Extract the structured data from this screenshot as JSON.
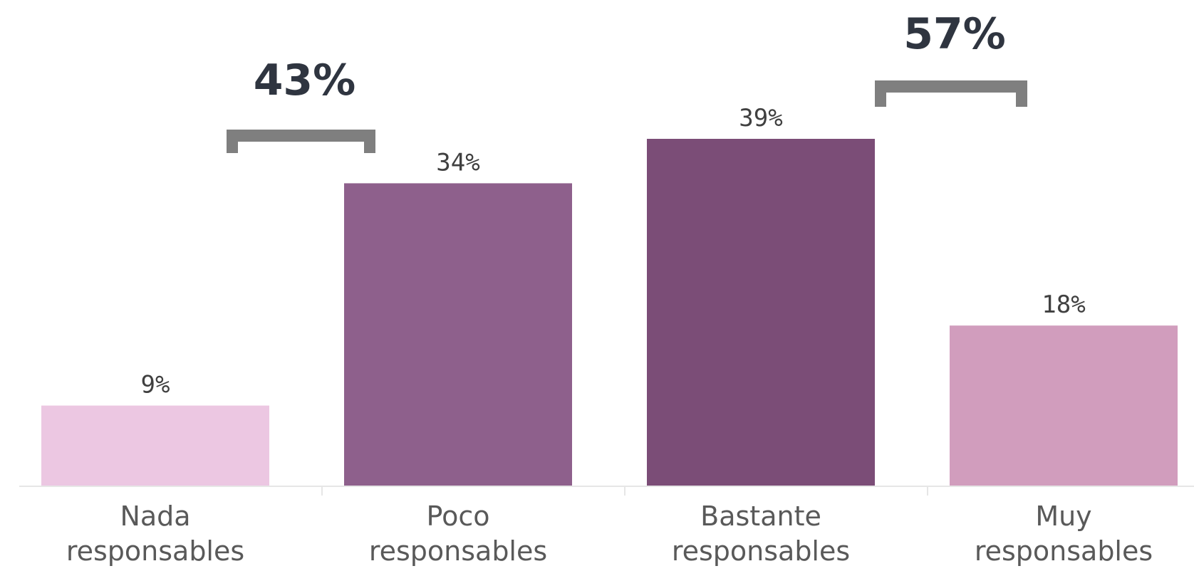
{
  "chart_data": {
    "type": "bar",
    "categories": [
      [
        "Nada",
        "responsables"
      ],
      [
        "Poco",
        "responsables"
      ],
      [
        "Bastante",
        "responsables"
      ],
      [
        "Muy",
        "responsables"
      ]
    ],
    "values": [
      9,
      34,
      39,
      18
    ],
    "value_labels": [
      "9%",
      "34%",
      "39%",
      "18%"
    ],
    "colors": [
      "#ecc7e2",
      "#8e608c",
      "#7b4d77",
      "#d19dbd"
    ],
    "ylim": [
      0,
      39
    ],
    "grid": false,
    "legend": "none",
    "xlabel": "",
    "ylabel": "",
    "groups": [
      {
        "label": "43%",
        "spans": [
          0,
          1
        ]
      },
      {
        "label": "57%",
        "spans": [
          2,
          3
        ]
      }
    ],
    "bracket_color": "#7f7f7f",
    "axis_color": "#e6e6e6"
  }
}
